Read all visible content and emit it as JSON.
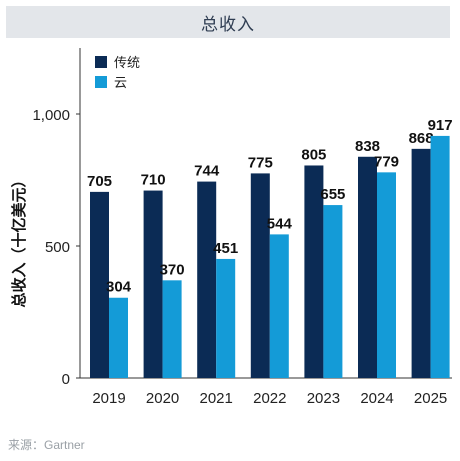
{
  "chart_data": {
    "type": "bar",
    "title": "总收入",
    "ylabel": "总收入（十亿美元）",
    "xlabel": "",
    "categories": [
      "2019",
      "2020",
      "2021",
      "2022",
      "2023",
      "2024",
      "2025"
    ],
    "series": [
      {
        "name": "传统",
        "color": "#0b2b55",
        "values": [
          705,
          710,
          744,
          775,
          805,
          838,
          868
        ]
      },
      {
        "name": "云",
        "color": "#149bd7",
        "values": [
          304,
          370,
          451,
          544,
          655,
          779,
          917
        ]
      }
    ],
    "ylim": [
      0,
      1250
    ],
    "yticks": [
      0,
      500,
      1000
    ],
    "ytick_labels": [
      "0",
      "500",
      "1,000"
    ],
    "grid": false,
    "legend": "top-left"
  },
  "source_label": "来源：Gartner"
}
